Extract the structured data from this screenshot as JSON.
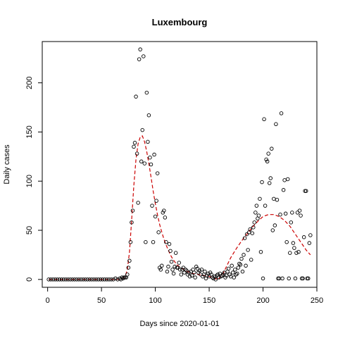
{
  "chart_data": {
    "type": "scatter",
    "title": "Luxembourg",
    "xlabel": "Days since 2020-01-01",
    "ylabel": "Daily cases",
    "xlim": [
      -5,
      250
    ],
    "ylim": [
      -8,
      242
    ],
    "x_ticks": [
      0,
      50,
      100,
      150,
      200,
      250
    ],
    "y_ticks": [
      0,
      50,
      100,
      150,
      200
    ],
    "grid": false,
    "legend": "none",
    "point_color": "#000000",
    "smooth_color": "#cc0000",
    "series": [
      {
        "kind": "points",
        "points": [
          [
            1,
            0
          ],
          [
            3,
            0
          ],
          [
            5,
            0
          ],
          [
            7,
            0
          ],
          [
            9,
            0
          ],
          [
            11,
            0
          ],
          [
            13,
            0
          ],
          [
            15,
            0
          ],
          [
            17,
            0
          ],
          [
            19,
            0
          ],
          [
            21,
            0
          ],
          [
            23,
            0
          ],
          [
            25,
            0
          ],
          [
            27,
            0
          ],
          [
            29,
            0
          ],
          [
            31,
            0
          ],
          [
            33,
            0
          ],
          [
            35,
            0
          ],
          [
            37,
            0
          ],
          [
            39,
            0
          ],
          [
            41,
            0
          ],
          [
            43,
            0
          ],
          [
            45,
            0
          ],
          [
            47,
            0
          ],
          [
            49,
            0
          ],
          [
            51,
            0
          ],
          [
            53,
            0
          ],
          [
            55,
            0
          ],
          [
            57,
            0
          ],
          [
            59,
            0
          ],
          [
            61,
            0
          ],
          [
            63,
            1
          ],
          [
            65,
            0
          ],
          [
            67,
            1
          ],
          [
            68,
            0
          ],
          [
            69,
            2
          ],
          [
            70,
            1
          ],
          [
            71,
            2
          ],
          [
            72,
            2
          ],
          [
            73,
            2
          ],
          [
            74,
            5
          ],
          [
            75,
            12
          ],
          [
            76,
            19
          ],
          [
            77,
            38
          ],
          [
            78,
            58
          ],
          [
            79,
            70
          ],
          [
            80,
            135
          ],
          [
            81,
            139
          ],
          [
            82,
            186
          ],
          [
            83,
            128
          ],
          [
            84,
            78
          ],
          [
            85,
            224
          ],
          [
            86,
            234
          ],
          [
            87,
            120
          ],
          [
            88,
            152
          ],
          [
            89,
            227
          ],
          [
            90,
            118
          ],
          [
            91,
            38
          ],
          [
            92,
            190
          ],
          [
            93,
            140
          ],
          [
            94,
            167
          ],
          [
            95,
            124
          ],
          [
            96,
            117
          ],
          [
            97,
            75
          ],
          [
            98,
            38
          ],
          [
            99,
            127
          ],
          [
            100,
            64
          ],
          [
            101,
            80
          ],
          [
            102,
            108
          ],
          [
            103,
            48
          ],
          [
            104,
            12
          ],
          [
            105,
            10
          ],
          [
            106,
            14
          ],
          [
            107,
            68
          ],
          [
            108,
            70
          ],
          [
            109,
            63
          ],
          [
            110,
            38
          ],
          [
            111,
            8
          ],
          [
            112,
            13
          ],
          [
            113,
            36
          ],
          [
            114,
            29
          ],
          [
            115,
            18
          ],
          [
            116,
            10
          ],
          [
            117,
            6
          ],
          [
            118,
            13
          ],
          [
            119,
            27
          ],
          [
            120,
            12
          ],
          [
            121,
            12
          ],
          [
            122,
            17
          ],
          [
            123,
            10
          ],
          [
            124,
            5
          ],
          [
            125,
            10
          ],
          [
            126,
            12
          ],
          [
            127,
            7
          ],
          [
            128,
            10
          ],
          [
            129,
            9
          ],
          [
            130,
            5
          ],
          [
            131,
            7
          ],
          [
            132,
            3
          ],
          [
            133,
            8
          ],
          [
            134,
            4
          ],
          [
            135,
            10
          ],
          [
            136,
            7
          ],
          [
            137,
            2
          ],
          [
            138,
            13
          ],
          [
            139,
            11
          ],
          [
            140,
            7
          ],
          [
            141,
            9
          ],
          [
            142,
            5
          ],
          [
            143,
            10
          ],
          [
            144,
            3
          ],
          [
            145,
            5
          ],
          [
            146,
            8
          ],
          [
            147,
            1
          ],
          [
            148,
            4
          ],
          [
            149,
            6
          ],
          [
            150,
            3
          ],
          [
            151,
            7
          ],
          [
            152,
            5
          ],
          [
            153,
            2
          ],
          [
            154,
            1
          ],
          [
            155,
            3
          ],
          [
            156,
            0
          ],
          [
            157,
            4
          ],
          [
            158,
            5
          ],
          [
            159,
            2
          ],
          [
            160,
            6
          ],
          [
            161,
            3
          ],
          [
            162,
            4
          ],
          [
            163,
            5
          ],
          [
            164,
            7
          ],
          [
            165,
            2
          ],
          [
            166,
            4
          ],
          [
            167,
            8
          ],
          [
            168,
            11
          ],
          [
            169,
            5
          ],
          [
            170,
            3
          ],
          [
            171,
            14
          ],
          [
            172,
            7
          ],
          [
            173,
            2
          ],
          [
            174,
            10
          ],
          [
            175,
            5
          ],
          [
            176,
            6
          ],
          [
            177,
            12
          ],
          [
            178,
            16
          ],
          [
            179,
            15
          ],
          [
            180,
            21
          ],
          [
            181,
            8
          ],
          [
            182,
            25
          ],
          [
            183,
            42
          ],
          [
            184,
            14
          ],
          [
            185,
            46
          ],
          [
            186,
            30
          ],
          [
            187,
            48
          ],
          [
            188,
            51
          ],
          [
            189,
            20
          ],
          [
            190,
            47
          ],
          [
            191,
            53
          ],
          [
            192,
            58
          ],
          [
            193,
            68
          ],
          [
            194,
            75
          ],
          [
            195,
            62
          ],
          [
            196,
            65
          ],
          [
            197,
            82
          ],
          [
            198,
            28
          ],
          [
            199,
            99
          ],
          [
            200,
            1
          ],
          [
            201,
            163
          ],
          [
            202,
            75
          ],
          [
            203,
            122
          ],
          [
            204,
            120
          ],
          [
            205,
            128
          ],
          [
            206,
            98
          ],
          [
            207,
            103
          ],
          [
            208,
            133
          ],
          [
            209,
            50
          ],
          [
            210,
            82
          ],
          [
            211,
            55
          ],
          [
            212,
            158
          ],
          [
            213,
            81
          ],
          [
            214,
            1
          ],
          [
            215,
            1
          ],
          [
            216,
            66
          ],
          [
            217,
            169
          ],
          [
            218,
            1
          ],
          [
            219,
            91
          ],
          [
            220,
            101
          ],
          [
            221,
            67
          ],
          [
            222,
            38
          ],
          [
            223,
            102
          ],
          [
            224,
            1
          ],
          [
            225,
            27
          ],
          [
            226,
            58
          ],
          [
            227,
            68
          ],
          [
            228,
            37
          ],
          [
            229,
            32
          ],
          [
            230,
            1
          ],
          [
            231,
            27
          ],
          [
            232,
            68
          ],
          [
            233,
            28
          ],
          [
            234,
            70
          ],
          [
            235,
            65
          ],
          [
            236,
            1
          ],
          [
            237,
            1
          ],
          [
            238,
            43
          ],
          [
            239,
            90
          ],
          [
            240,
            90
          ],
          [
            241,
            1
          ],
          [
            242,
            1
          ],
          [
            243,
            37
          ],
          [
            244,
            45
          ]
        ]
      },
      {
        "kind": "smooth",
        "points": [
          [
            1,
            0
          ],
          [
            10,
            0
          ],
          [
            20,
            0
          ],
          [
            30,
            0
          ],
          [
            40,
            0
          ],
          [
            50,
            0
          ],
          [
            60,
            0
          ],
          [
            65,
            0
          ],
          [
            70,
            1
          ],
          [
            72,
            3
          ],
          [
            74,
            10
          ],
          [
            76,
            28
          ],
          [
            78,
            60
          ],
          [
            80,
            95
          ],
          [
            82,
            122
          ],
          [
            84,
            138
          ],
          [
            86,
            145
          ],
          [
            88,
            146
          ],
          [
            90,
            140
          ],
          [
            92,
            130
          ],
          [
            94,
            118
          ],
          [
            96,
            104
          ],
          [
            98,
            90
          ],
          [
            100,
            77
          ],
          [
            102,
            66
          ],
          [
            104,
            56
          ],
          [
            106,
            48
          ],
          [
            108,
            41
          ],
          [
            110,
            35
          ],
          [
            112,
            30
          ],
          [
            114,
            25
          ],
          [
            116,
            21
          ],
          [
            118,
            18
          ],
          [
            120,
            15
          ],
          [
            125,
            11
          ],
          [
            130,
            8
          ],
          [
            135,
            6
          ],
          [
            140,
            5
          ],
          [
            145,
            4
          ],
          [
            150,
            3
          ],
          [
            153,
            2
          ],
          [
            155,
            1
          ],
          [
            158,
            0
          ],
          [
            160,
            2
          ],
          [
            163,
            6
          ],
          [
            166,
            13
          ],
          [
            170,
            22
          ],
          [
            175,
            31
          ],
          [
            180,
            39
          ],
          [
            185,
            46
          ],
          [
            190,
            53
          ],
          [
            195,
            59
          ],
          [
            200,
            64
          ],
          [
            205,
            66
          ],
          [
            210,
            66
          ],
          [
            215,
            64
          ],
          [
            220,
            60
          ],
          [
            225,
            54
          ],
          [
            230,
            46
          ],
          [
            235,
            38
          ],
          [
            240,
            30
          ],
          [
            244,
            25
          ]
        ]
      }
    ]
  }
}
